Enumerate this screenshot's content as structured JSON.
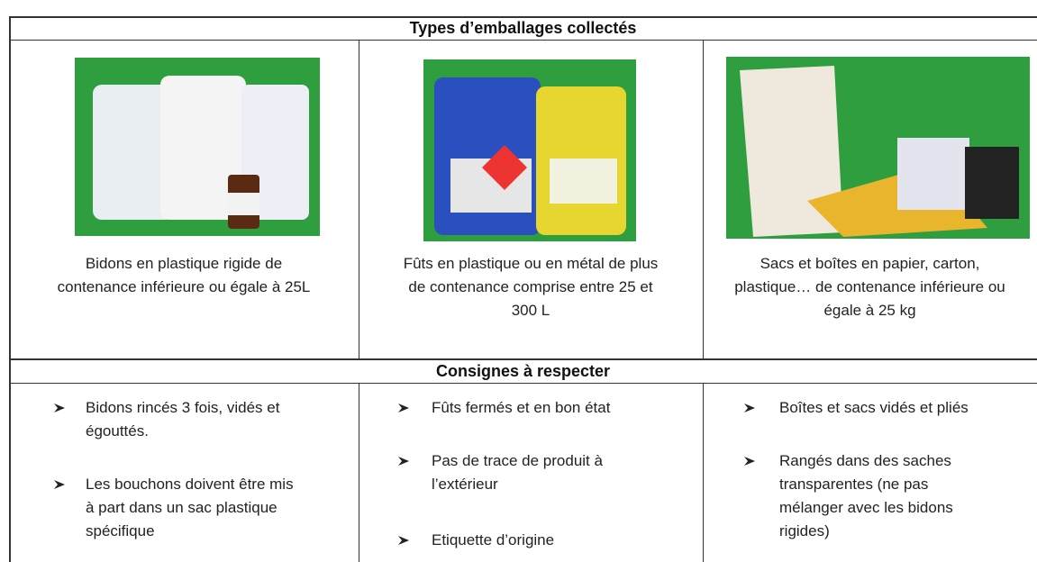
{
  "table": {
    "header": "Types d’emballages collectés",
    "columns": [
      {
        "caption": [
          "Bidons en plastique rigide de",
          "contenance inférieure ou égale à 25L"
        ]
      },
      {
        "caption": [
          "Fûts en plastique ou en métal de plus",
          "de contenance comprise entre 25 et",
          "300 L"
        ]
      },
      {
        "caption": [
          "Sacs et boîtes en papier, carton,",
          "plastique… de contenance inférieure ou",
          "égale à 25 kg"
        ]
      }
    ],
    "subheader": "Consignes à respecter",
    "rules": [
      [
        [
          "Bidons rincés 3 fois, vidés et",
          "égouttés."
        ],
        [
          "Les bouchons doivent être mis",
          "à part dans un sac plastique",
          "spécifique"
        ]
      ],
      [
        [
          "Fûts fermés et en bon état"
        ],
        [
          "Pas de trace de produit à",
          "l’extérieur"
        ],
        [
          "Etiquette d’origine"
        ]
      ],
      [
        [
          "Boîtes et sacs vidés et pliés"
        ],
        [
          "Rangés dans des saches",
          "transparentes (ne pas",
          "mélanger avec les bidons",
          "rigides)"
        ]
      ]
    ]
  }
}
